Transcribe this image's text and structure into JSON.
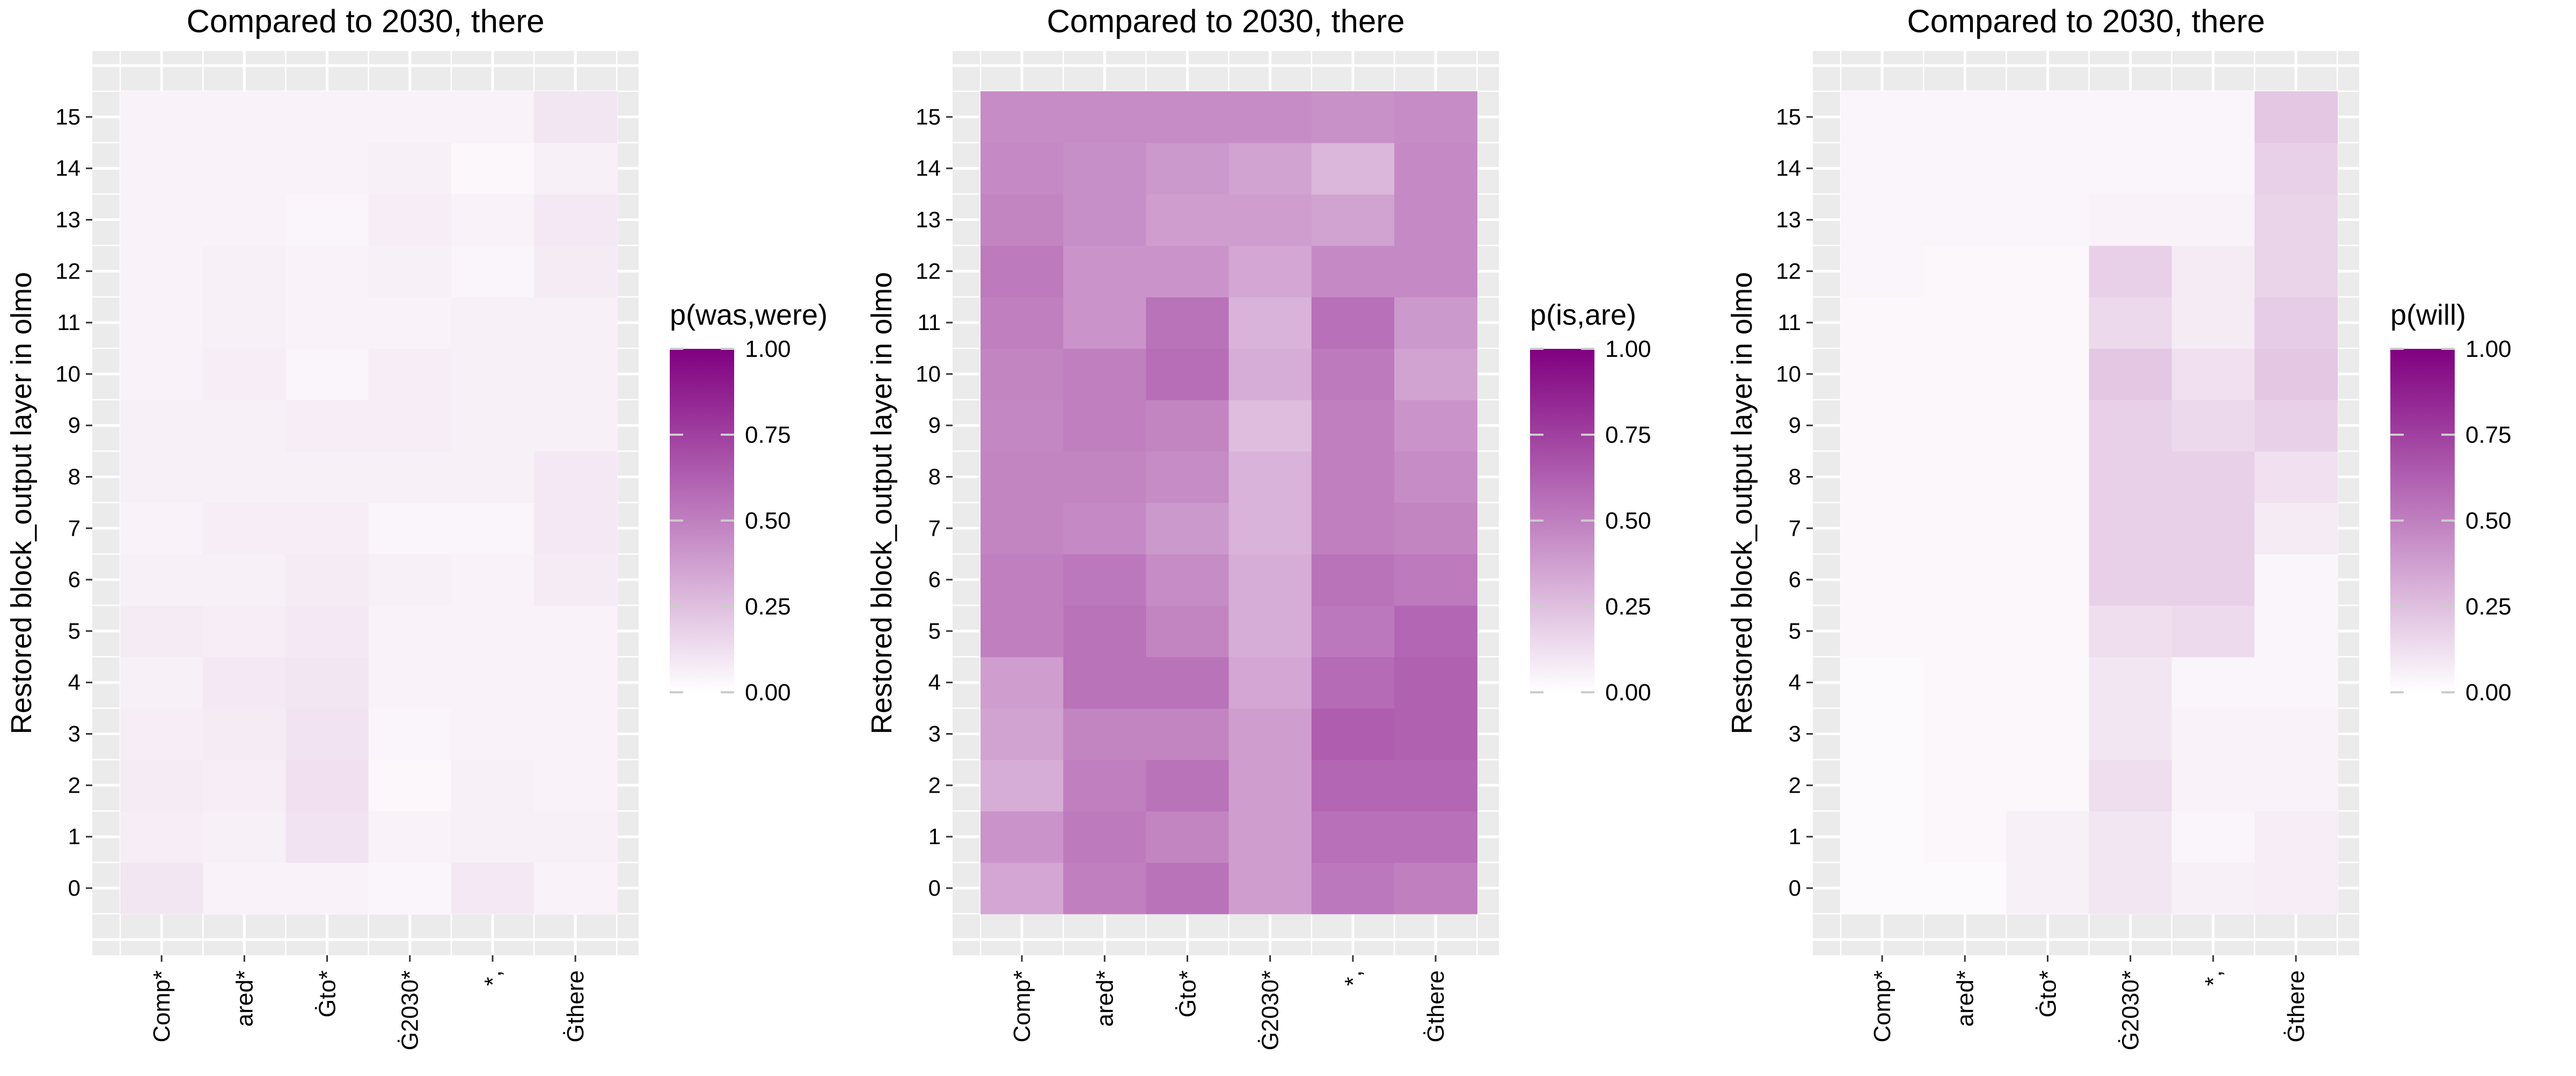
{
  "figure": {
    "ylabel": "Restored block_output layer in olmo",
    "categories": [
      "Comp*",
      "ared*",
      "Ġto*",
      "Ġ2030*",
      "*,",
      "Ġthere"
    ],
    "layers": [
      0,
      1,
      2,
      3,
      4,
      5,
      6,
      7,
      8,
      9,
      10,
      11,
      12,
      13,
      14,
      15
    ],
    "colors": {
      "low": "#ffffff",
      "high": "#800080",
      "panel_bg": "#ebebeb",
      "grid": "#ffffff",
      "tick": "#333333"
    }
  },
  "chart_data": [
    {
      "type": "heatmap",
      "title": "Compared to 2030, there",
      "ylabel": "Restored block_output layer in olmo",
      "xlabel": "",
      "x": [
        "Comp*",
        "ared*",
        "Ġto*",
        "Ġ2030*",
        "*,",
        "Ġthere"
      ],
      "y": [
        0,
        1,
        2,
        3,
        4,
        5,
        6,
        7,
        8,
        9,
        10,
        11,
        12,
        13,
        14,
        15
      ],
      "legend": {
        "title": "p(was,were)",
        "ticks": [
          "0.00",
          "0.25",
          "0.50",
          "0.75",
          "1.00"
        ],
        "range": [
          0,
          1
        ]
      },
      "values": [
        [
          0.1,
          0.05,
          0.05,
          0.04,
          0.09,
          0.05
        ],
        [
          0.07,
          0.06,
          0.11,
          0.05,
          0.06,
          0.06
        ],
        [
          0.08,
          0.07,
          0.12,
          0.03,
          0.06,
          0.05
        ],
        [
          0.07,
          0.08,
          0.11,
          0.04,
          0.05,
          0.05
        ],
        [
          0.06,
          0.09,
          0.1,
          0.05,
          0.05,
          0.05
        ],
        [
          0.08,
          0.07,
          0.09,
          0.05,
          0.05,
          0.05
        ],
        [
          0.06,
          0.06,
          0.08,
          0.06,
          0.05,
          0.08
        ],
        [
          0.05,
          0.07,
          0.07,
          0.04,
          0.04,
          0.09
        ],
        [
          0.06,
          0.06,
          0.06,
          0.06,
          0.06,
          0.09
        ],
        [
          0.06,
          0.06,
          0.07,
          0.07,
          0.06,
          0.06
        ],
        [
          0.05,
          0.07,
          0.04,
          0.07,
          0.06,
          0.06
        ],
        [
          0.05,
          0.06,
          0.05,
          0.05,
          0.06,
          0.06
        ],
        [
          0.05,
          0.06,
          0.05,
          0.06,
          0.04,
          0.08
        ],
        [
          0.05,
          0.05,
          0.04,
          0.07,
          0.05,
          0.09
        ],
        [
          0.05,
          0.05,
          0.05,
          0.06,
          0.03,
          0.06
        ],
        [
          0.05,
          0.05,
          0.05,
          0.05,
          0.05,
          0.1
        ]
      ]
    },
    {
      "type": "heatmap",
      "title": "Compared to 2030, there",
      "ylabel": "Restored block_output layer in olmo",
      "xlabel": "",
      "x": [
        "Comp*",
        "ared*",
        "Ġto*",
        "Ġ2030*",
        "*,",
        "Ġthere"
      ],
      "y": [
        0,
        1,
        2,
        3,
        4,
        5,
        6,
        7,
        8,
        9,
        10,
        11,
        12,
        13,
        14,
        15
      ],
      "legend": {
        "title": "p(is,are)",
        "ticks": [
          "0.00",
          "0.25",
          "0.50",
          "0.75",
          "1.00"
        ],
        "range": [
          0,
          1
        ]
      },
      "values": [
        [
          0.35,
          0.5,
          0.55,
          0.38,
          0.53,
          0.5
        ],
        [
          0.42,
          0.52,
          0.48,
          0.38,
          0.56,
          0.56
        ],
        [
          0.32,
          0.5,
          0.55,
          0.38,
          0.6,
          0.6
        ],
        [
          0.36,
          0.48,
          0.48,
          0.38,
          0.63,
          0.62
        ],
        [
          0.38,
          0.55,
          0.55,
          0.35,
          0.58,
          0.62
        ],
        [
          0.5,
          0.55,
          0.48,
          0.32,
          0.53,
          0.6
        ],
        [
          0.5,
          0.53,
          0.45,
          0.32,
          0.55,
          0.52
        ],
        [
          0.48,
          0.46,
          0.4,
          0.3,
          0.5,
          0.48
        ],
        [
          0.48,
          0.48,
          0.45,
          0.3,
          0.5,
          0.45
        ],
        [
          0.47,
          0.5,
          0.48,
          0.26,
          0.5,
          0.42
        ],
        [
          0.48,
          0.5,
          0.57,
          0.32,
          0.52,
          0.36
        ],
        [
          0.5,
          0.42,
          0.55,
          0.3,
          0.56,
          0.4
        ],
        [
          0.52,
          0.42,
          0.42,
          0.35,
          0.46,
          0.46
        ],
        [
          0.48,
          0.44,
          0.38,
          0.38,
          0.36,
          0.46
        ],
        [
          0.46,
          0.44,
          0.4,
          0.36,
          0.28,
          0.46
        ],
        [
          0.45,
          0.45,
          0.45,
          0.45,
          0.43,
          0.45
        ]
      ]
    },
    {
      "type": "heatmap",
      "title": "Compared to 2030, there",
      "ylabel": "Restored block_output layer in olmo",
      "xlabel": "",
      "x": [
        "Comp*",
        "ared*",
        "Ġto*",
        "Ġ2030*",
        "*,",
        "Ġthere"
      ],
      "y": [
        0,
        1,
        2,
        3,
        4,
        5,
        6,
        7,
        8,
        9,
        10,
        11,
        12,
        13,
        14,
        15
      ],
      "legend": {
        "title": "p(will)",
        "ticks": [
          "0.00",
          "0.25",
          "0.50",
          "0.75",
          "1.00"
        ],
        "range": [
          0,
          1
        ]
      },
      "values": [
        [
          0.02,
          0.02,
          0.06,
          0.1,
          0.06,
          0.07
        ],
        [
          0.02,
          0.03,
          0.06,
          0.1,
          0.04,
          0.07
        ],
        [
          0.02,
          0.03,
          0.03,
          0.13,
          0.05,
          0.05
        ],
        [
          0.02,
          0.03,
          0.03,
          0.1,
          0.05,
          0.05
        ],
        [
          0.02,
          0.03,
          0.03,
          0.1,
          0.04,
          0.04
        ],
        [
          0.03,
          0.03,
          0.03,
          0.13,
          0.14,
          0.04
        ],
        [
          0.03,
          0.03,
          0.03,
          0.18,
          0.18,
          0.04
        ],
        [
          0.03,
          0.03,
          0.03,
          0.18,
          0.18,
          0.08
        ],
        [
          0.03,
          0.03,
          0.03,
          0.18,
          0.18,
          0.12
        ],
        [
          0.03,
          0.03,
          0.03,
          0.18,
          0.15,
          0.18
        ],
        [
          0.03,
          0.03,
          0.03,
          0.22,
          0.12,
          0.22
        ],
        [
          0.03,
          0.03,
          0.03,
          0.15,
          0.08,
          0.2
        ],
        [
          0.04,
          0.03,
          0.03,
          0.18,
          0.08,
          0.17
        ],
        [
          0.04,
          0.04,
          0.04,
          0.05,
          0.05,
          0.17
        ],
        [
          0.04,
          0.04,
          0.04,
          0.04,
          0.04,
          0.18
        ],
        [
          0.04,
          0.04,
          0.04,
          0.04,
          0.04,
          0.22
        ]
      ]
    }
  ]
}
